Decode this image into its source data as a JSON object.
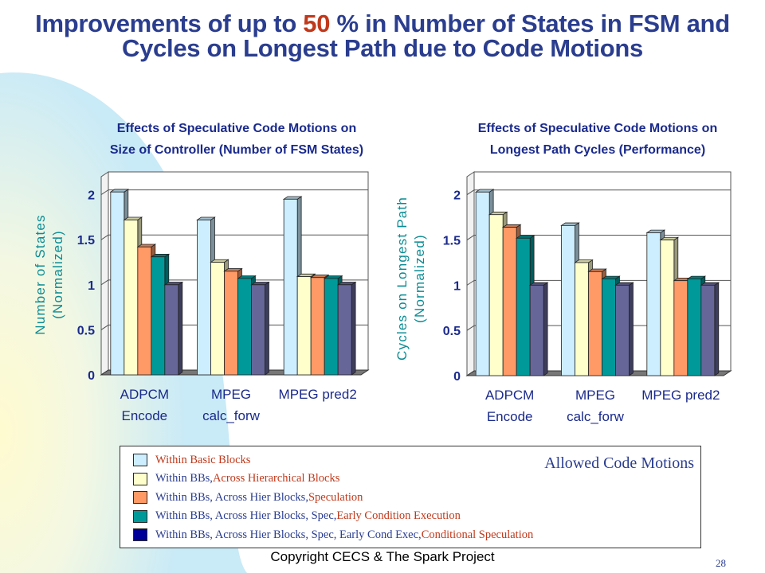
{
  "slide": {
    "title_part1": "Improvements of up to ",
    "title_highlight": "50",
    "title_part2": " % in Number of States in FSM and",
    "title_line2": "Cycles on Longest Path due to Code  Motions",
    "footer": "Copyright CECS & The Spark Project",
    "page_number": "28"
  },
  "legend": {
    "title": "Allowed Code Motions",
    "items": [
      {
        "base": "Within Basic Blocks",
        "extra": "",
        "color": "#cceeff"
      },
      {
        "base": "Within BBs, ",
        "extra": "Across Hierarchical Blocks",
        "color": "#ffffcc"
      },
      {
        "base": "Within BBs, Across Hier Blocks, ",
        "extra": "Speculation",
        "color": "#ff9966"
      },
      {
        "base": "Within BBs, Across Hier Blocks, Spec, ",
        "extra": "Early Condition Execution",
        "color": "#009999"
      },
      {
        "base": "Within BBs, Across Hier Blocks, Spec, Early Cond Exec, ",
        "extra": "Conditional Speculation",
        "color": "#000099"
      }
    ]
  },
  "chart_data": [
    {
      "type": "bar",
      "title_line1": "Effects of Speculative Code Motions on",
      "title_line2": "Size of Controller (Number of FSM States)",
      "ylabel_line1": "Number of States",
      "ylabel_line2": "(Normalized)",
      "categories": [
        [
          "ADPCM",
          "Encode"
        ],
        [
          "MPEG",
          "calc_forw"
        ],
        [
          "MPEG pred2",
          ""
        ]
      ],
      "ylim": [
        0,
        2.2
      ],
      "yticks": [
        "0",
        "0.5",
        "1",
        "1.5",
        "2"
      ],
      "ytick_values": [
        0,
        0.5,
        1,
        1.5,
        2
      ],
      "grid": true,
      "series": [
        {
          "values": [
            2.03,
            1.72,
            1.95
          ],
          "color": "#cceeff"
        },
        {
          "values": [
            1.72,
            1.25,
            1.09
          ],
          "color": "#ffffcc"
        },
        {
          "values": [
            1.42,
            1.15,
            1.08
          ],
          "color": "#ff9966"
        },
        {
          "values": [
            1.31,
            1.07,
            1.07
          ],
          "color": "#009999"
        },
        {
          "values": [
            1.0,
            1.0,
            1.0
          ],
          "color": "#666699"
        }
      ]
    },
    {
      "type": "bar",
      "title_line1": "Effects of Speculative Code Motions on",
      "title_line2": "Longest Path Cycles (Performance)",
      "ylabel_line1": "Cycles on Longest Path",
      "ylabel_line2": "(Normalized)",
      "categories": [
        [
          "ADPCM",
          "Encode"
        ],
        [
          "MPEG",
          "calc_forw"
        ],
        [
          "MPEG pred2",
          ""
        ]
      ],
      "ylim": [
        0,
        2.2
      ],
      "yticks": [
        "0",
        "0.5",
        "1",
        "1.5",
        "2"
      ],
      "ytick_values": [
        0,
        0.5,
        1,
        1.5,
        2
      ],
      "grid": true,
      "series": [
        {
          "values": [
            2.03,
            1.66,
            1.58
          ],
          "color": "#cceeff"
        },
        {
          "values": [
            1.78,
            1.25,
            1.5
          ],
          "color": "#ffffcc"
        },
        {
          "values": [
            1.64,
            1.15,
            1.05
          ],
          "color": "#ff9966"
        },
        {
          "values": [
            1.52,
            1.07,
            1.07
          ],
          "color": "#009999"
        },
        {
          "values": [
            1.0,
            1.0,
            1.0
          ],
          "color": "#666699"
        }
      ]
    }
  ]
}
